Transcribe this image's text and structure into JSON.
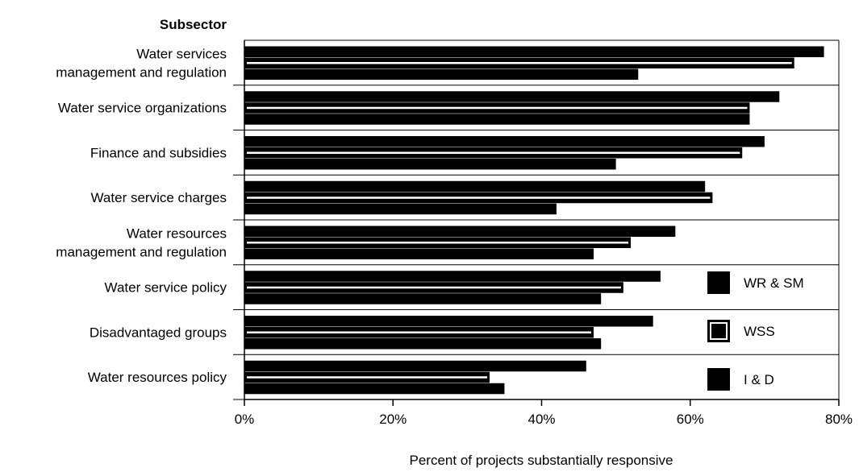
{
  "chart_data": {
    "type": "bar",
    "orientation": "horizontal",
    "ylabel": "Subsector",
    "xlabel": "Percent of projects substantially responsive",
    "xlim": [
      0,
      80
    ],
    "xticks": [
      "0%",
      "20%",
      "40%",
      "60%",
      "80%"
    ],
    "xtick_values": [
      0,
      20,
      40,
      60,
      80
    ],
    "grid": false,
    "legend_position": "right",
    "categories": [
      [
        "Water services",
        "management and regulation"
      ],
      [
        "Water service organizations"
      ],
      [
        "Finance and subsidies"
      ],
      [
        "Water service charges"
      ],
      [
        "Water resources",
        "management and regulation"
      ],
      [
        "Water service policy"
      ],
      [
        "Disadvantaged groups"
      ],
      [
        "Water resources policy"
      ]
    ],
    "series": [
      {
        "name": "WR & SM",
        "values": [
          78,
          72,
          70,
          62,
          58,
          56,
          55,
          46
        ]
      },
      {
        "name": "WSS",
        "values": [
          74,
          68,
          67,
          63,
          52,
          51,
          47,
          33
        ]
      },
      {
        "name": "I & D",
        "values": [
          53,
          68,
          50,
          42,
          47,
          48,
          48,
          35
        ]
      }
    ],
    "colors": {
      "WR & SM": "#000000",
      "WSS": "#000000",
      "I & D": "#000000",
      "outline": "#000000",
      "inner_line": "#ffffff"
    }
  }
}
